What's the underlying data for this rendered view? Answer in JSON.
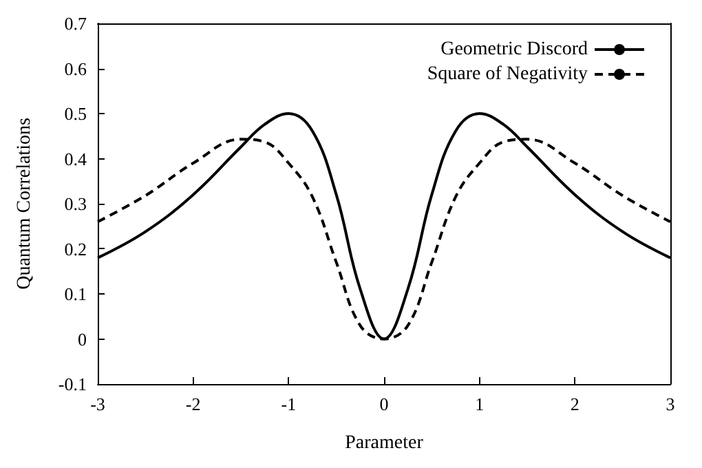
{
  "chart_data": {
    "type": "line",
    "xlabel": "Parameter",
    "ylabel": "Quantum Correlations",
    "xlim": [
      -3,
      3
    ],
    "ylim": [
      -0.1,
      0.7
    ],
    "xticks": [
      -3,
      -2,
      -1,
      0,
      1,
      2,
      3
    ],
    "yticks": [
      -0.1,
      0,
      0.1,
      0.2,
      0.3,
      0.4,
      0.5,
      0.6,
      0.7
    ],
    "legend": "top right",
    "grid": false,
    "marker": "none",
    "series": [
      {
        "name": "Geometric Discord",
        "color": "#000000",
        "line_style": "solid",
        "x": [
          -3,
          -2.5,
          -2,
          -1.5,
          -1.25,
          -1,
          -0.75,
          -0.5,
          -0.25,
          0,
          0.25,
          0.5,
          0.75,
          1,
          1.25,
          1.5,
          2,
          2.5,
          3
        ],
        "values": [
          0.18,
          0.238,
          0.32,
          0.426,
          0.476,
          0.5,
          0.461,
          0.32,
          0.111,
          0,
          0.111,
          0.32,
          0.461,
          0.5,
          0.476,
          0.426,
          0.32,
          0.238,
          0.18
        ]
      },
      {
        "name": "Square of Negativity",
        "color": "#000000",
        "line_style": "dashed",
        "x": [
          -3,
          -2.5,
          -2,
          -1.5,
          -1.25,
          -1,
          -0.75,
          -0.5,
          -0.25,
          0,
          0.25,
          0.5,
          0.75,
          1,
          1.25,
          1.5,
          2,
          2.5,
          3
        ],
        "values": [
          0.26,
          0.318,
          0.39,
          0.443,
          0.437,
          0.39,
          0.315,
          0.17,
          0.03,
          0,
          0.03,
          0.17,
          0.315,
          0.39,
          0.437,
          0.443,
          0.39,
          0.318,
          0.26
        ]
      }
    ]
  }
}
